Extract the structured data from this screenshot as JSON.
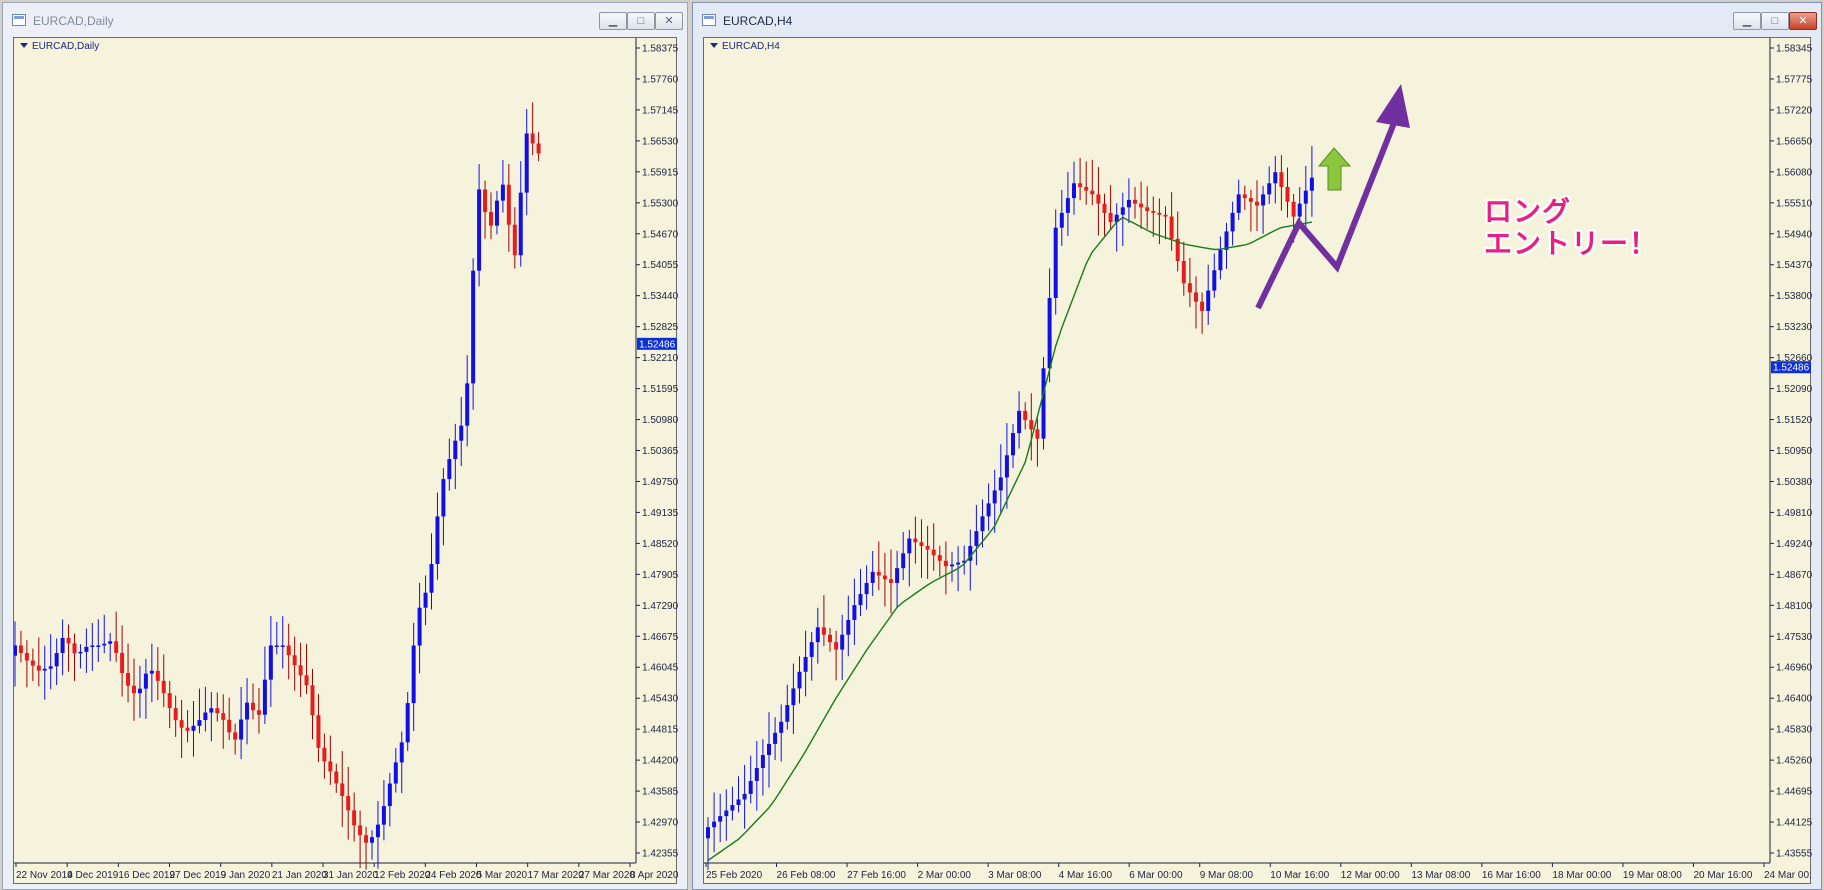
{
  "windows": {
    "daily": {
      "title": "EURCAD,Daily",
      "symbol_label": "EURCAD,Daily",
      "current_price": "1.52486",
      "price_ticks": [
        "1.58375",
        "1.57760",
        "1.57145",
        "1.56530",
        "1.55915",
        "1.55300",
        "1.54670",
        "1.54055",
        "1.53440",
        "1.52825",
        "1.52210",
        "1.51595",
        "1.50980",
        "1.50365",
        "1.49750",
        "1.49135",
        "1.48520",
        "1.47905",
        "1.47290",
        "1.46675",
        "1.46045",
        "1.45430",
        "1.44815",
        "1.44200",
        "1.43585",
        "1.42970",
        "1.42355"
      ],
      "time_ticks": [
        "22 Nov 2019",
        "4 Dec 2019",
        "16 Dec 2019",
        "27 Dec 2019",
        "9 Jan 2020",
        "21 Jan 2020",
        "31 Jan 2020",
        "12 Feb 2020",
        "24 Feb 2020",
        "5 Mar 2020",
        "17 Mar 2020",
        "27 Mar 2020",
        "8 Apr 2020"
      ]
    },
    "h4": {
      "title": "EURCAD,H4",
      "symbol_label": "EURCAD,H4",
      "current_price": "1.52486",
      "price_ticks": [
        "1.58345",
        "1.57775",
        "1.57220",
        "1.56650",
        "1.56080",
        "1.55510",
        "1.54940",
        "1.54370",
        "1.53800",
        "1.53230",
        "1.52660",
        "1.52090",
        "1.51520",
        "1.50950",
        "1.50380",
        "1.49810",
        "1.49240",
        "1.48670",
        "1.48100",
        "1.47530",
        "1.46960",
        "1.46400",
        "1.45830",
        "1.45260",
        "1.44695",
        "1.44125",
        "1.43555"
      ],
      "time_ticks": [
        "25 Feb 2020",
        "26 Feb 08:00",
        "27 Feb 16:00",
        "2 Mar 00:00",
        "3 Mar 08:00",
        "4 Mar 16:00",
        "6 Mar 00:00",
        "9 Mar 08:00",
        "10 Mar 16:00",
        "12 Mar 00:00",
        "13 Mar 08:00",
        "16 Mar 16:00",
        "18 Mar 00:00",
        "19 Mar 08:00",
        "20 Mar 16:00",
        "24 Mar 00:00"
      ]
    }
  },
  "annotation": {
    "line1": "ロング",
    "line2": "エントリー！"
  },
  "colors": {
    "bull": "#1010e6",
    "bear": "#e81c1c",
    "wick": "#a00000",
    "ma": "#1a7a1a",
    "chart_bg": "#f5f3dc",
    "arrow_purple": "#7030a0",
    "arrow_green": "#8cc63f",
    "annotation_pink": "#ea1e82"
  },
  "chart_data": [
    {
      "type": "candlestick",
      "symbol": "EURCAD",
      "timeframe": "Daily",
      "ylim": [
        1.42355,
        1.58375
      ],
      "x": [
        "2019-11-22",
        "2019-12-04",
        "2019-12-16",
        "2019-12-27",
        "2020-01-09",
        "2020-01-21",
        "2020-01-31",
        "2020-02-12",
        "2020-02-24",
        "2020-03-05",
        "2020-03-17",
        "2020-03-27",
        "2020-04-08"
      ],
      "close_path": [
        1.466,
        1.463,
        1.461,
        1.462,
        1.468,
        1.464,
        1.466,
        1.466,
        1.467,
        1.459,
        1.456,
        1.462,
        1.458,
        1.452,
        1.449,
        1.451,
        1.454,
        1.452,
        1.447,
        1.455,
        1.452,
        1.466,
        1.466,
        1.462,
        1.458,
        1.445,
        1.441,
        1.436,
        1.43,
        1.427,
        1.432,
        1.441,
        1.449,
        1.472,
        1.478,
        1.497,
        1.505,
        1.511,
        1.556,
        1.547,
        1.557,
        1.541,
        1.566,
        1.562
      ],
      "current_price": 1.52486
    },
    {
      "type": "candlestick",
      "symbol": "EURCAD",
      "timeframe": "H4",
      "ylim": [
        1.43555,
        1.58345
      ],
      "x": [
        "2020-02-25",
        "2020-02-26 08:00",
        "2020-02-27 16:00",
        "2020-03-02 00:00",
        "2020-03-03 08:00",
        "2020-03-04 16:00",
        "2020-03-06 00:00",
        "2020-03-09 08:00",
        "2020-03-10 16:00",
        "2020-03-12 00:00",
        "2020-03-13 08:00",
        "2020-03-16 16:00",
        "2020-03-18 00:00",
        "2020-03-19 08:00",
        "2020-03-20 16:00",
        "2020-03-24 00:00"
      ],
      "close_path": [
        1.442,
        1.445,
        1.448,
        1.455,
        1.461,
        1.47,
        1.478,
        1.474,
        1.482,
        1.488,
        1.486,
        1.494,
        1.492,
        1.489,
        1.49,
        1.498,
        1.505,
        1.517,
        1.512,
        1.55,
        1.558,
        1.556,
        1.551,
        1.555,
        1.553,
        1.552,
        1.54,
        1.535,
        1.546,
        1.556,
        1.554,
        1.56,
        1.552,
        1.559
      ],
      "moving_average": [
        1.436,
        1.44,
        1.446,
        1.455,
        1.465,
        1.474,
        1.482,
        1.486,
        1.489,
        1.496,
        1.508,
        1.53,
        1.545,
        1.552,
        1.549,
        1.547,
        1.546,
        1.547,
        1.55,
        1.551
      ],
      "current_price": 1.52486
    }
  ]
}
